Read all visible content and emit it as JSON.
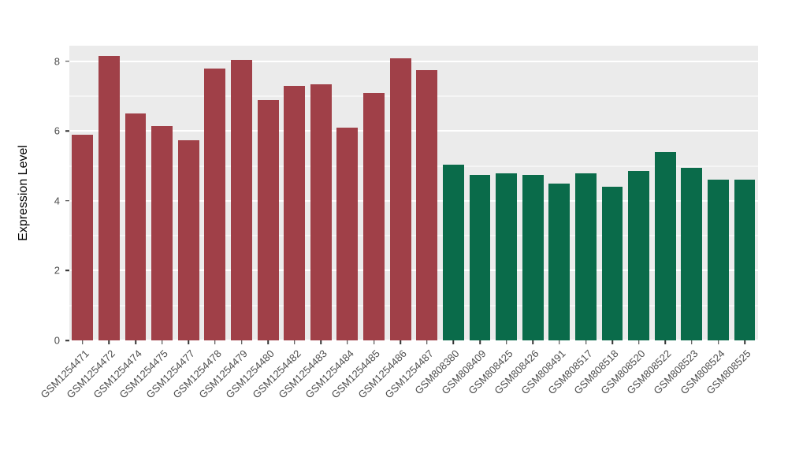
{
  "chart_data": {
    "type": "bar",
    "title": "",
    "xlabel": "",
    "ylabel": "Expression Level",
    "ylim": [
      0,
      8.45
    ],
    "yticks": [
      0,
      2,
      4,
      6,
      8
    ],
    "yticks_minor": [
      1,
      3,
      5,
      7
    ],
    "grid": true,
    "legend": "none",
    "panel_bg": "#EBEBEB",
    "grid_color": "#FFFFFF",
    "axis_text_color": "#4D4D4D",
    "categories": [
      "GSM1254471",
      "GSM1254472",
      "GSM1254474",
      "GSM1254475",
      "GSM1254477",
      "GSM1254478",
      "GSM1254479",
      "GSM1254480",
      "GSM1254482",
      "GSM1254483",
      "GSM1254484",
      "GSM1254485",
      "GSM1254486",
      "GSM1254487",
      "GSM808380",
      "GSM808409",
      "GSM808425",
      "GSM808426",
      "GSM808491",
      "GSM808517",
      "GSM808518",
      "GSM808520",
      "GSM808522",
      "GSM808523",
      "GSM808524",
      "GSM808525"
    ],
    "values": [
      5.9,
      8.15,
      6.5,
      6.15,
      5.75,
      7.8,
      8.05,
      6.9,
      7.3,
      7.35,
      6.1,
      7.1,
      8.1,
      7.75,
      5.05,
      4.75,
      4.8,
      4.75,
      4.5,
      4.8,
      4.4,
      4.85,
      5.4,
      4.95,
      4.6,
      4.6
    ],
    "groups": [
      "gsm1254_group",
      "gsm1254_group",
      "gsm1254_group",
      "gsm1254_group",
      "gsm1254_group",
      "gsm1254_group",
      "gsm1254_group",
      "gsm1254_group",
      "gsm1254_group",
      "gsm1254_group",
      "gsm1254_group",
      "gsm1254_group",
      "gsm1254_group",
      "gsm1254_group",
      "gsm808_group",
      "gsm808_group",
      "gsm808_group",
      "gsm808_group",
      "gsm808_group",
      "gsm808_group",
      "gsm808_group",
      "gsm808_group",
      "gsm808_group",
      "gsm808_group",
      "gsm808_group",
      "gsm808_group"
    ],
    "group_colors": {
      "gsm1254_group": "#A04048",
      "gsm808_group": "#0A6B4A"
    }
  }
}
